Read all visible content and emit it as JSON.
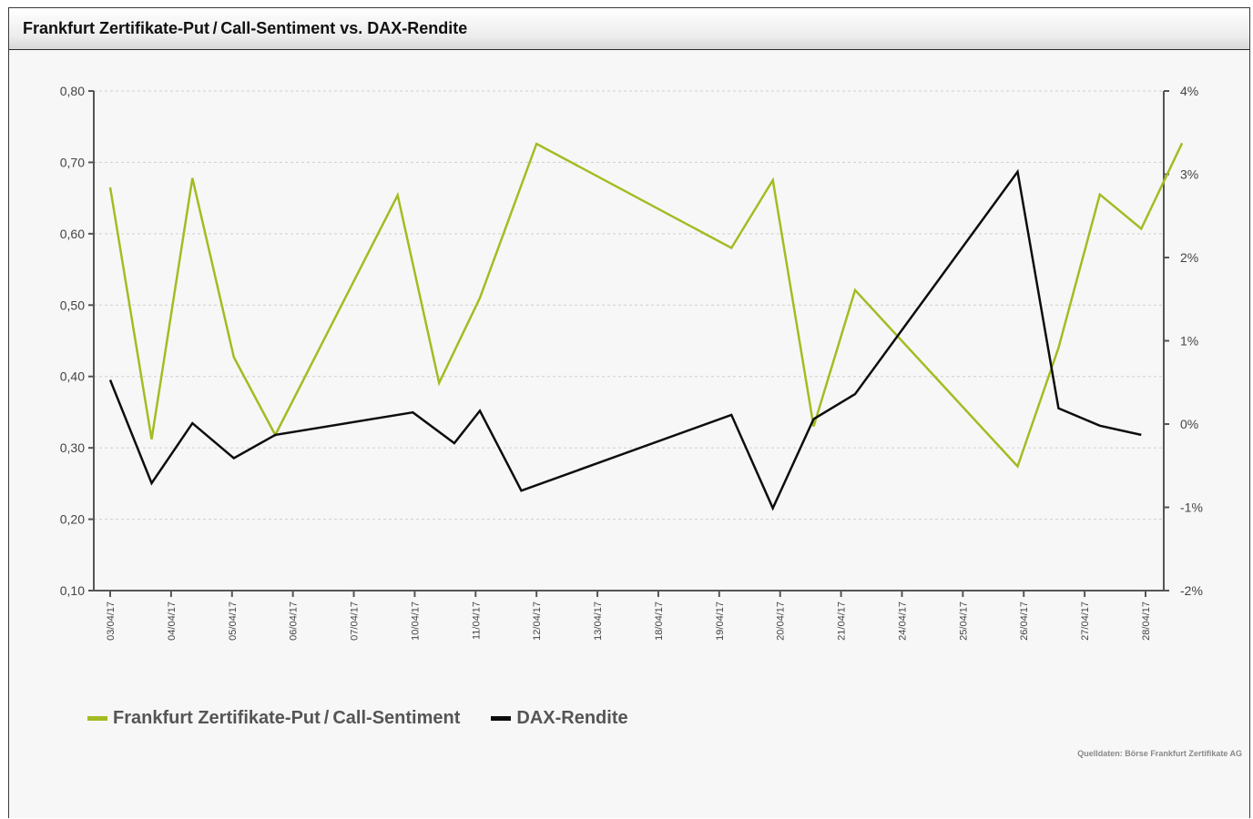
{
  "page": {
    "title": "Frankfurt Zertifikate-Put / Call-Sentiment vs. DAX-Rendite"
  },
  "colors": {
    "sentiment": "#a5bb22",
    "dax": "#0d0d0d",
    "grid": "#cfcfcf",
    "axis": "#555555"
  },
  "chart_data": {
    "type": "line",
    "title": "Frankfurt Zertifikate-Put / Call-Sentiment vs. DAX-Rendite",
    "categories": [
      "03/04/17",
      "04/04/17",
      "05/04/17",
      "06/04/17",
      "07/04/17",
      "10/04/17",
      "11/04/17",
      "12/04/17",
      "13/04/17",
      "18/04/17",
      "19/04/17",
      "20/04/17",
      "21/04/17",
      "24/04/17",
      "25/04/17",
      "26/04/17",
      "27/04/17",
      "28/04/17"
    ],
    "y_left": {
      "ylim": [
        0.1,
        0.8
      ],
      "ticks": [
        0.1,
        0.2,
        0.3,
        0.4,
        0.5,
        0.6,
        0.7,
        0.8
      ],
      "tick_labels": [
        "0,10",
        "0,20",
        "0,30",
        "0,40",
        "0,50",
        "0,60",
        "0,70",
        "0,80"
      ]
    },
    "y_right": {
      "ylim": [
        -2,
        4
      ],
      "ticks": [
        -2,
        -1,
        0,
        1,
        2,
        3,
        4
      ],
      "tick_labels": [
        "-2%",
        "-1%",
        "0%",
        "1%",
        "2%",
        "3%",
        "4%"
      ]
    },
    "grid": true,
    "legend_position": "bottom-left",
    "series": [
      {
        "name": "Frankfurt Zertifikate-Put / Call-Sentiment",
        "axis": "left",
        "x": [
          0,
          0.68,
          1.35,
          2.03,
          2.71,
          4.72,
          5.4,
          6.07,
          7.0,
          10.2,
          10.88,
          11.55,
          12.23,
          14.9,
          15.57,
          16.25,
          16.93,
          17.6
        ],
        "values": [
          0.665,
          0.312,
          0.678,
          0.427,
          0.318,
          0.654,
          0.391,
          0.51,
          0.726,
          0.58,
          0.675,
          0.33,
          0.521,
          0.274,
          0.44,
          0.655,
          0.607,
          0.727
        ]
      },
      {
        "name": "DAX-Rendite",
        "axis": "right",
        "x": [
          0,
          0.68,
          1.35,
          2.03,
          2.71,
          4.97,
          5.65,
          6.07,
          6.75,
          10.2,
          10.88,
          11.55,
          12.23,
          14.9,
          15.57,
          16.25,
          16.93,
          17.6
        ],
        "values": [
          0.53,
          -0.71,
          0.01,
          -0.41,
          -0.13,
          0.14,
          -0.23,
          0.16,
          -0.8,
          0.11,
          -1.01,
          0.06,
          0.36,
          3.03,
          0.19,
          -0.02,
          -0.13,
          null
        ]
      }
    ]
  },
  "legend": {
    "items": [
      {
        "label": "Frankfurt Zertifikate-Put / Call-Sentiment"
      },
      {
        "label": "DAX-Rendite"
      }
    ]
  },
  "footer": {
    "source": "Quelldaten: Börse Frankfurt Zertifikate AG"
  }
}
